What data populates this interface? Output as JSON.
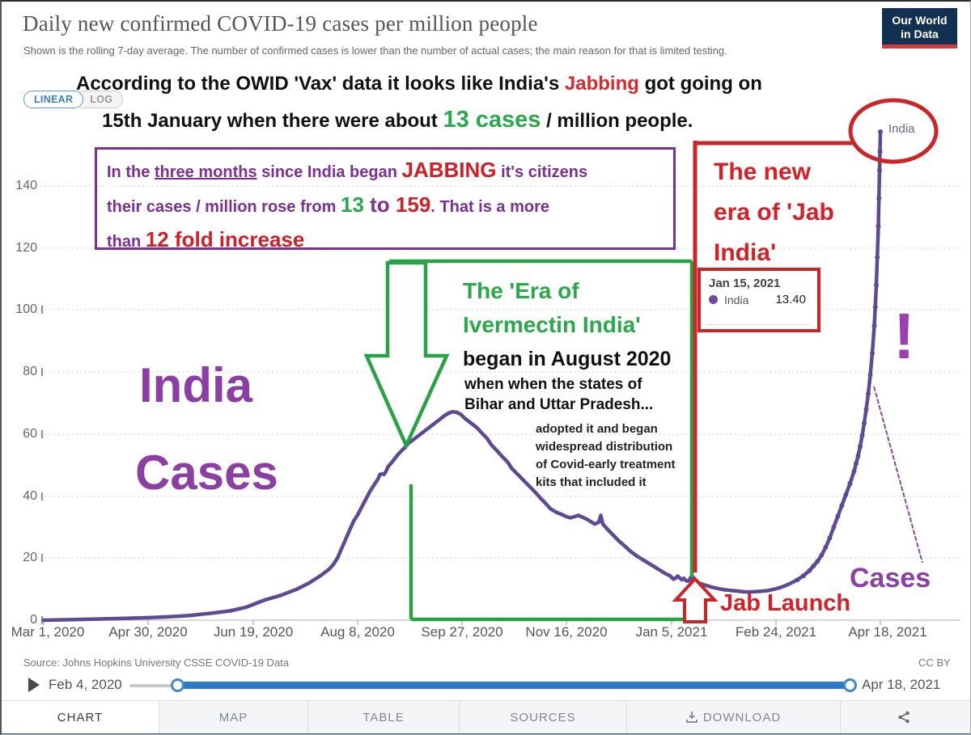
{
  "header": {
    "title": "Daily new confirmed COVID-19 cases per million people",
    "subtitle": "Shown is the rolling 7-day average. The number of confirmed cases is lower than the number of actual cases; the main reason for that is limited testing.",
    "logo_line1": "Our World",
    "logo_line2": "in Data"
  },
  "toggles": {
    "linear": "LINEAR",
    "log": "LOG"
  },
  "overlay": {
    "headline": {
      "l1a": "According to the OWID 'Vax' data it looks like India's ",
      "l1b": "Jabbing",
      "l1c": " got going on",
      "l2a": "15th January when there were about ",
      "l2b": "13 cases",
      "l2c": " / million people."
    },
    "purple_box": {
      "p1": "In the ",
      "p2": "three months",
      "p3": " since India began ",
      "p4": "JABBING",
      "p5": " it's citizens",
      "p6": "their cases / million rose from ",
      "p7": "13",
      "p8": " to ",
      "p9": "159",
      "p10": ". That is a more",
      "p11": "than ",
      "p12": "12 fold increase"
    },
    "new_era": {
      "l1": "The new",
      "l2": "era of 'Jab",
      "l3": "India'"
    },
    "ivermectin": {
      "green1": "The 'Era of",
      "green2": "Ivermectin India'",
      "black1": "began in August 2020",
      "black2": "when when the states of",
      "black3": "Bihar and Uttar Pradesh...",
      "small1": "adopted it and began",
      "small2": "widespread distribution",
      "small3": "of Covid-early treatment",
      "small4": "kits that included it"
    },
    "india_big": "India",
    "cases_big": "Cases",
    "jab_launch": "Jab Launch",
    "cases_label": "Cases",
    "exclaim": "!"
  },
  "tooltip": {
    "date": "Jan 15, 2021",
    "series": "India",
    "value": "13.40"
  },
  "chart_data": {
    "type": "line",
    "title": "Daily new confirmed COVID-19 cases per million people",
    "series_name": "India",
    "end_label": "India",
    "x_ticks": [
      "Mar 1, 2020",
      "Apr 30, 2020",
      "Jun 19, 2020",
      "Aug 8, 2020",
      "Sep 27, 2020",
      "Nov 16, 2020",
      "Jan 5, 2021",
      "Feb 24, 2021",
      "Apr 18, 2021"
    ],
    "y_tick_labels": [
      "0",
      "20",
      "40",
      "60",
      "80",
      "100",
      "120",
      "140"
    ],
    "y_ticks": [
      0,
      20,
      40,
      60,
      80,
      100,
      120,
      140
    ],
    "ylim": [
      0,
      160
    ],
    "grid": true,
    "x_range_days": 413,
    "marker_from_day": 372,
    "jab_point": {
      "day": 320,
      "date": "Jan 15, 2021",
      "value": 13.4
    },
    "end_value": 159,
    "points": [
      [
        0,
        0
      ],
      [
        15,
        0.2
      ],
      [
        28,
        0.4
      ],
      [
        40,
        0.6
      ],
      [
        52,
        0.8
      ],
      [
        62,
        1.1
      ],
      [
        72,
        1.5
      ],
      [
        82,
        2.2
      ],
      [
        92,
        3
      ],
      [
        100,
        4.2
      ],
      [
        109,
        6.5
      ],
      [
        117,
        8
      ],
      [
        125,
        10
      ],
      [
        131,
        12
      ],
      [
        137,
        14.5
      ],
      [
        141,
        16.5
      ],
      [
        143,
        18
      ],
      [
        145,
        20
      ],
      [
        147,
        23
      ],
      [
        149,
        26
      ],
      [
        151,
        29
      ],
      [
        153,
        32
      ],
      [
        155,
        34
      ],
      [
        157,
        36.5
      ],
      [
        159,
        39
      ],
      [
        161,
        41.5
      ],
      [
        163,
        43.5
      ],
      [
        165,
        45.5
      ],
      [
        166,
        47
      ],
      [
        167,
        47.2
      ],
      [
        168,
        47
      ],
      [
        169,
        48
      ],
      [
        170,
        49.5
      ],
      [
        172,
        51
      ],
      [
        175,
        53.5
      ],
      [
        178,
        55.5
      ],
      [
        180,
        57
      ],
      [
        183,
        58.5
      ],
      [
        186,
        60
      ],
      [
        189,
        61.5
      ],
      [
        192,
        63
      ],
      [
        195,
        64.5
      ],
      [
        198,
        66
      ],
      [
        200,
        66.8
      ],
      [
        202,
        67.2
      ],
      [
        204,
        67
      ],
      [
        206,
        66.3
      ],
      [
        208,
        65
      ],
      [
        211,
        63.5
      ],
      [
        214,
        62
      ],
      [
        216,
        60.5
      ],
      [
        219,
        58.5
      ],
      [
        221,
        56.5
      ],
      [
        224,
        54.5
      ],
      [
        226,
        53
      ],
      [
        229,
        51
      ],
      [
        231,
        49
      ],
      [
        234,
        47
      ],
      [
        237,
        45
      ],
      [
        240,
        43
      ],
      [
        243,
        41
      ],
      [
        245,
        39.5
      ],
      [
        248,
        37.5
      ],
      [
        250,
        36
      ],
      [
        253,
        34.8
      ],
      [
        256,
        34
      ],
      [
        258,
        33.4
      ],
      [
        260,
        33
      ],
      [
        262,
        33.4
      ],
      [
        264,
        33.8
      ],
      [
        266,
        33.2
      ],
      [
        268,
        32.6
      ],
      [
        270,
        31.8
      ],
      [
        272,
        31
      ],
      [
        274,
        31.6
      ],
      [
        275,
        33.8
      ],
      [
        276,
        31
      ],
      [
        278,
        29.5
      ],
      [
        281,
        27.5
      ],
      [
        284,
        25.5
      ],
      [
        287,
        23.8
      ],
      [
        290,
        22
      ],
      [
        293,
        20.6
      ],
      [
        296,
        19.4
      ],
      [
        299,
        18.2
      ],
      [
        302,
        17
      ],
      [
        305,
        15.8
      ],
      [
        307,
        15
      ],
      [
        309,
        14.4
      ],
      [
        310,
        13.8
      ],
      [
        311,
        13.2
      ],
      [
        312,
        13.6
      ],
      [
        313,
        14.2
      ],
      [
        314,
        13.6
      ],
      [
        315,
        13
      ],
      [
        316,
        13.5
      ],
      [
        317,
        12.8
      ],
      [
        318,
        12.6
      ],
      [
        320,
        13.4
      ],
      [
        322,
        12.4
      ],
      [
        324,
        11.8
      ],
      [
        327,
        11.2
      ],
      [
        330,
        10.6
      ],
      [
        333,
        10.2
      ],
      [
        336,
        9.8
      ],
      [
        339,
        9.6
      ],
      [
        342,
        9.4
      ],
      [
        345,
        9.2
      ],
      [
        348,
        9.1
      ],
      [
        351,
        9.2
      ],
      [
        354,
        9.3
      ],
      [
        357,
        9.5
      ],
      [
        360,
        9.9
      ],
      [
        363,
        10.4
      ],
      [
        366,
        11.1
      ],
      [
        369,
        12
      ],
      [
        372,
        13
      ],
      [
        375,
        14.3
      ],
      [
        378,
        16
      ],
      [
        380,
        17.5
      ],
      [
        382,
        19
      ],
      [
        384,
        21
      ],
      [
        386,
        23.5
      ],
      [
        388,
        26.5
      ],
      [
        390,
        30
      ],
      [
        392,
        33.5
      ],
      [
        394,
        37
      ],
      [
        396,
        40.5
      ],
      [
        398,
        44
      ],
      [
        400,
        48
      ],
      [
        401,
        50.5
      ],
      [
        402,
        53
      ],
      [
        403,
        56
      ],
      [
        404,
        59.5
      ],
      [
        405,
        63.5
      ],
      [
        406,
        68
      ],
      [
        407,
        73
      ],
      [
        408,
        79
      ],
      [
        409,
        86
      ],
      [
        410,
        95
      ],
      [
        410.5,
        101
      ],
      [
        411,
        108
      ],
      [
        411.5,
        117
      ],
      [
        412,
        127
      ],
      [
        412.3,
        136
      ],
      [
        412.6,
        145
      ],
      [
        412.8,
        151
      ],
      [
        413,
        157.5
      ]
    ]
  },
  "footer": {
    "source": "Source: Johns Hopkins University CSSE COVID-19 Data",
    "license": "CC BY",
    "slider": {
      "start": "Feb 4, 2020",
      "end": "Apr 18, 2021"
    },
    "tabs": [
      "CHART",
      "MAP",
      "TABLE",
      "SOURCES",
      "DOWNLOAD"
    ]
  },
  "colors": {
    "line": "#5e4a92",
    "annotation_purple": "#8c3fa3",
    "annotation_red": "#cc2528",
    "annotation_green": "#27a244",
    "linear_blue": "#3d7fb5",
    "logo_navy": "#12304f"
  }
}
